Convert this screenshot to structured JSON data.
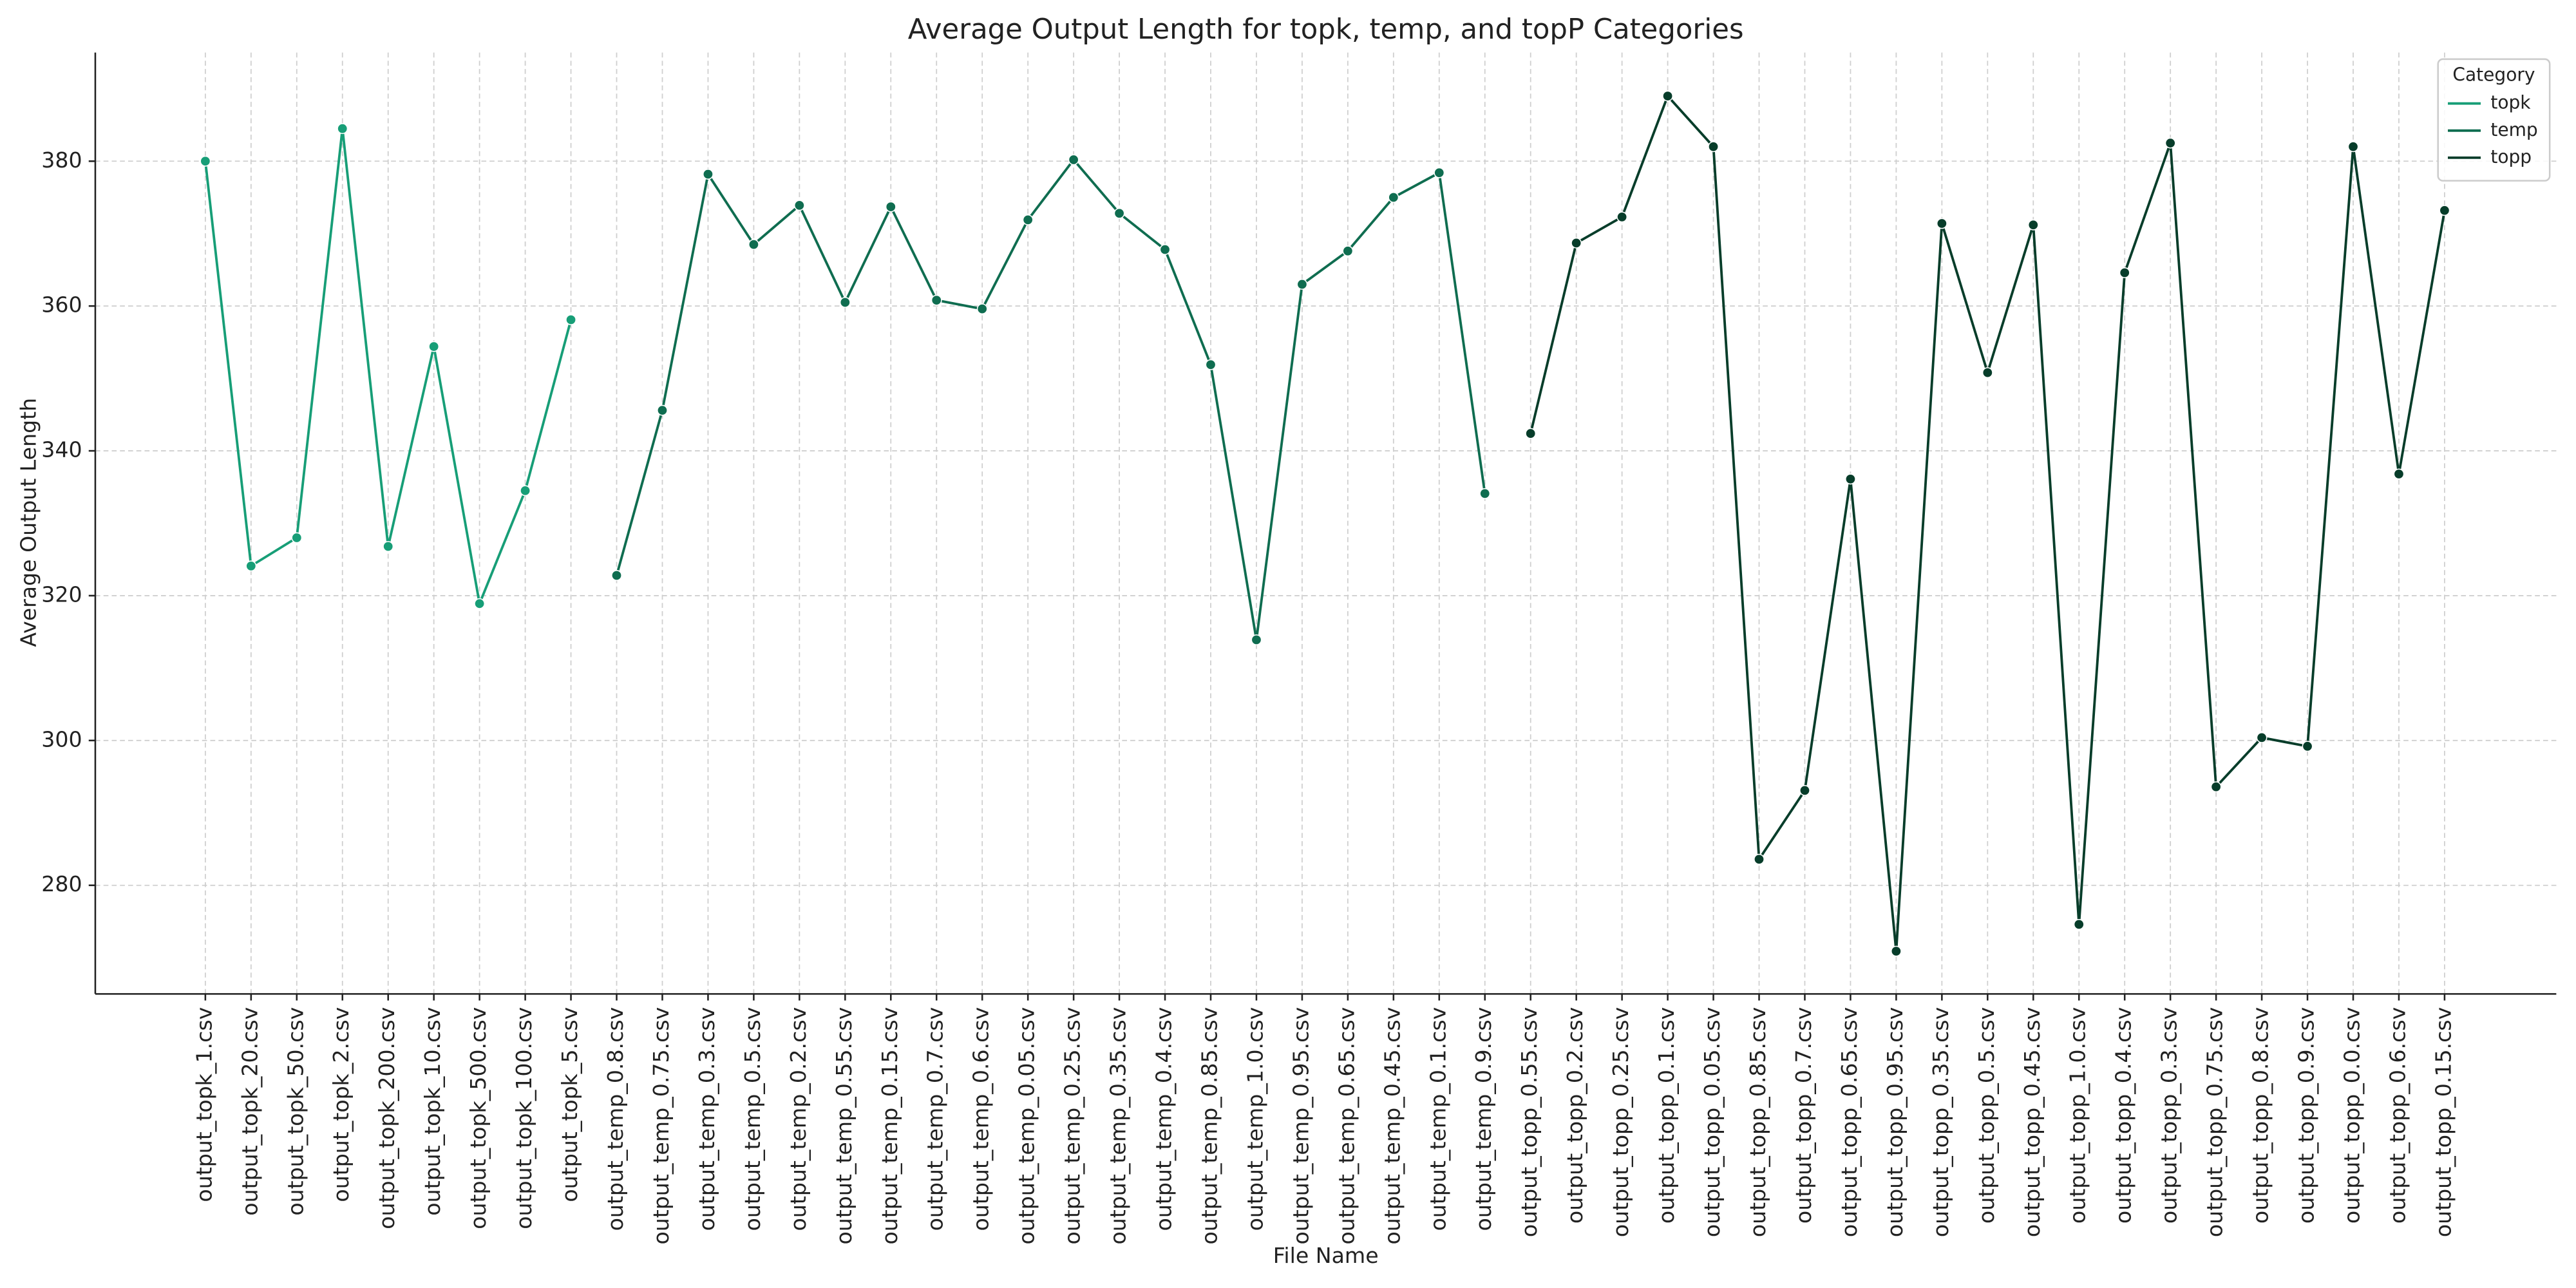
{
  "chart_data": {
    "type": "line",
    "title": "Average Output Length for topk, temp, and topP Categories",
    "x_label": "File Name",
    "y_label": "Average Output Length",
    "categories": [
      "output_topk_1.csv",
      "output_topk_20.csv",
      "output_topk_50.csv",
      "output_topk_2.csv",
      "output_topk_200.csv",
      "output_topk_10.csv",
      "output_topk_500.csv",
      "output_topk_100.csv",
      "output_topk_5.csv",
      "output_temp_0.8.csv",
      "output_temp_0.75.csv",
      "output_temp_0.3.csv",
      "output_temp_0.5.csv",
      "output_temp_0.2.csv",
      "output_temp_0.55.csv",
      "output_temp_0.15.csv",
      "output_temp_0.7.csv",
      "output_temp_0.6.csv",
      "output_temp_0.05.csv",
      "output_temp_0.25.csv",
      "output_temp_0.35.csv",
      "output_temp_0.4.csv",
      "output_temp_0.85.csv",
      "output_temp_1.0.csv",
      "output_temp_0.95.csv",
      "output_temp_0.65.csv",
      "output_temp_0.45.csv",
      "output_temp_0.1.csv",
      "output_temp_0.9.csv",
      "output_topp_0.55.csv",
      "output_topp_0.2.csv",
      "output_topp_0.25.csv",
      "output_topp_0.1.csv",
      "output_topp_0.05.csv",
      "output_topp_0.85.csv",
      "output_topp_0.7.csv",
      "output_topp_0.65.csv",
      "output_topp_0.95.csv",
      "output_topp_0.35.csv",
      "output_topp_0.5.csv",
      "output_topp_0.45.csv",
      "output_topp_1.0.csv",
      "output_topp_0.4.csv",
      "output_topp_0.3.csv",
      "output_topp_0.75.csv",
      "output_topp_0.8.csv",
      "output_topp_0.9.csv",
      "output_topp_0.0.csv",
      "output_topp_0.6.csv",
      "output_topp_0.15.csv"
    ],
    "series": [
      {
        "name": "topk",
        "color": "#179e77",
        "values": [
          380.0,
          324.1,
          328.0,
          384.5,
          326.8,
          354.4,
          318.9,
          334.5,
          358.1,
          null,
          null,
          null,
          null,
          null,
          null,
          null,
          null,
          null,
          null,
          null,
          null,
          null,
          null,
          null,
          null,
          null,
          null,
          null,
          null,
          null,
          null,
          null,
          null,
          null,
          null,
          null,
          null,
          null,
          null,
          null,
          null,
          null,
          null,
          null,
          null,
          null,
          null,
          null,
          null,
          null
        ]
      },
      {
        "name": "temp",
        "color": "#0f6d50",
        "values": [
          null,
          null,
          null,
          null,
          null,
          null,
          null,
          null,
          null,
          322.8,
          345.6,
          378.2,
          368.5,
          373.9,
          360.5,
          373.7,
          360.8,
          359.6,
          371.9,
          380.2,
          372.8,
          367.8,
          351.9,
          313.9,
          363.0,
          367.6,
          375.0,
          378.4,
          334.1,
          null,
          null,
          null,
          null,
          null,
          null,
          null,
          null,
          null,
          null,
          null,
          null,
          null,
          null,
          null,
          null,
          null,
          null,
          null,
          null,
          null
        ]
      },
      {
        "name": "topp",
        "color": "#073d2a",
        "values": [
          null,
          null,
          null,
          null,
          null,
          null,
          null,
          null,
          null,
          null,
          null,
          null,
          null,
          null,
          null,
          null,
          null,
          null,
          null,
          null,
          null,
          null,
          null,
          null,
          null,
          null,
          null,
          null,
          null,
          342.4,
          368.7,
          372.3,
          389.0,
          382.0,
          283.6,
          293.1,
          336.1,
          270.9,
          371.4,
          350.8,
          371.2,
          274.6,
          364.6,
          382.5,
          293.6,
          300.4,
          299.2,
          382.0,
          336.8,
          373.2
        ]
      }
    ],
    "legend_title": "Category",
    "legend": "upper right",
    "grid": true,
    "ylim": [
      265,
      395
    ],
    "yticks": [
      280,
      300,
      320,
      340,
      360,
      380
    ]
  }
}
